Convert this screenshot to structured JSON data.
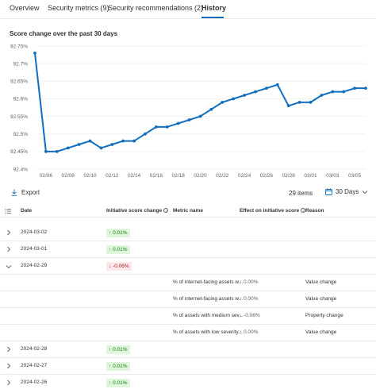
{
  "tabs": [
    {
      "label": "Overview"
    },
    {
      "label": "Security metrics (9)"
    },
    {
      "label": "Security recommendations (2)"
    },
    {
      "label": "History",
      "active": true
    }
  ],
  "chart_title": "Score change over the past 30 days",
  "chart_data": {
    "type": "line",
    "title": "Score change over the past 30 days",
    "x_tick_labels": [
      "02/06",
      "02/08",
      "02/10",
      "02/12",
      "02/14",
      "02/16",
      "02/18",
      "02/20",
      "02/22",
      "02/24",
      "02/26",
      "02/28",
      "03/01",
      "03/03",
      "03/05"
    ],
    "y_tick_labels": [
      "92.75%",
      "92.7%",
      "92.65%",
      "92.6%",
      "92.55%",
      "92.5%",
      "92.45%",
      "92.4%"
    ],
    "ylim": [
      92.4,
      92.75
    ],
    "series": [
      {
        "x": [
          "02/05",
          "02/06",
          "02/07",
          "02/08",
          "02/09",
          "02/10",
          "02/11",
          "02/12",
          "02/13",
          "02/14",
          "02/15",
          "02/16",
          "02/17",
          "02/18",
          "02/19",
          "02/20",
          "02/21",
          "02/22",
          "02/23",
          "02/24",
          "02/25",
          "02/26",
          "02/27",
          "02/28",
          "02/29",
          "03/01",
          "03/02",
          "03/03",
          "03/04",
          "03/05",
          "03/06"
        ],
        "values": [
          92.73,
          92.45,
          92.45,
          92.46,
          92.47,
          92.48,
          92.46,
          92.47,
          92.48,
          92.48,
          92.5,
          92.52,
          92.52,
          92.53,
          92.54,
          92.55,
          92.57,
          92.59,
          92.6,
          92.61,
          92.62,
          92.63,
          92.64,
          92.58,
          92.59,
          92.59,
          92.61,
          92.62,
          92.62,
          92.63,
          92.63
        ],
        "color": "#106ebe"
      }
    ],
    "grid": true
  },
  "toolbar": {
    "export_label": "Export",
    "items_count": "29 items",
    "days_label": "30 Days"
  },
  "columns": {
    "date": "Date",
    "initiative_score_change": "Initiative score change",
    "metric_name": "Metric name",
    "effect": "Effect on initiative score",
    "reason": "Reason"
  },
  "rows_top": [
    {
      "date": "2024-03-02",
      "change": "0.01%",
      "dir": "up"
    },
    {
      "date": "2024-03-01",
      "change": "0.01%",
      "dir": "up"
    },
    {
      "date": "2024-02-29",
      "change": "-0.06%",
      "dir": "down"
    }
  ],
  "sub_rows": [
    {
      "metric": "% of internet-facing assets w...",
      "effect": "0.00%",
      "dir": "up",
      "reason": "Value change"
    },
    {
      "metric": "% of internet-facing assets w...",
      "effect": "0.00%",
      "dir": "up",
      "reason": "Value change"
    },
    {
      "metric": "% of assets with medium sev...",
      "effect": "-0.06%",
      "dir": "down",
      "reason": "Property change"
    },
    {
      "metric": "% of assets with low severity...",
      "effect": "0.00%",
      "dir": "up",
      "reason": "Value change"
    }
  ],
  "rows_bottom": [
    {
      "date": "2024-02-28",
      "change": "0.01%",
      "dir": "up"
    },
    {
      "date": "2024-02-27",
      "change": "0.01%",
      "dir": "up"
    },
    {
      "date": "2024-02-26",
      "change": "0.01%",
      "dir": "up"
    }
  ],
  "colors": {
    "accent": "#0f6cbd",
    "line": "#106ebe",
    "positive_bg": "#dff6dd",
    "positive_fg": "#107c10",
    "negative_bg": "#fde7e9",
    "negative_fg": "#a4262c"
  }
}
